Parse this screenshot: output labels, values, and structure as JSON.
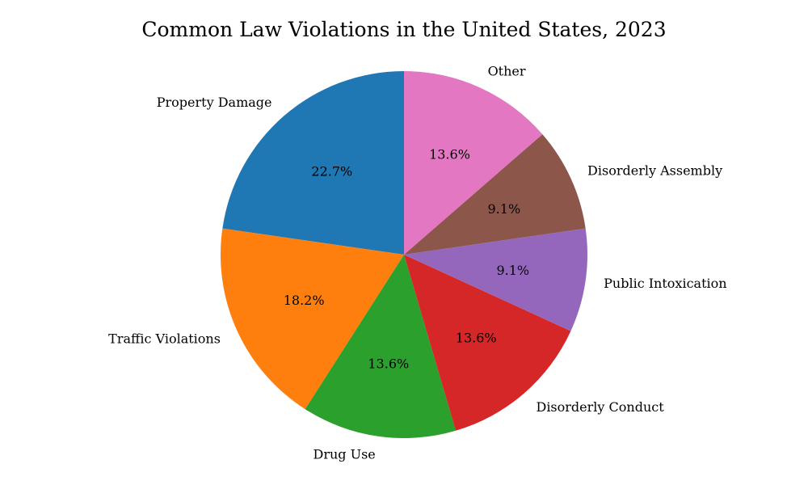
{
  "chart_data": {
    "type": "pie",
    "title": "Common Law Violations in the United States, 2023",
    "categories": [
      "Property Damage",
      "Traffic Violations",
      "Drug Use",
      "Disorderly Conduct",
      "Public Intoxication",
      "Disorderly Assembly",
      "Other"
    ],
    "values": [
      22.7,
      18.2,
      13.6,
      13.6,
      9.1,
      9.1,
      13.6
    ],
    "percent_labels": [
      "22.7%",
      "18.2%",
      "13.6%",
      "13.6%",
      "9.1%",
      "9.1%",
      "13.6%"
    ],
    "colors": [
      "#1f77b4",
      "#ff7f0e",
      "#2ca02c",
      "#d62728",
      "#9467bd",
      "#8c564b",
      "#e377c2"
    ],
    "start_angle_deg": 90,
    "direction": "counterclockwise"
  }
}
